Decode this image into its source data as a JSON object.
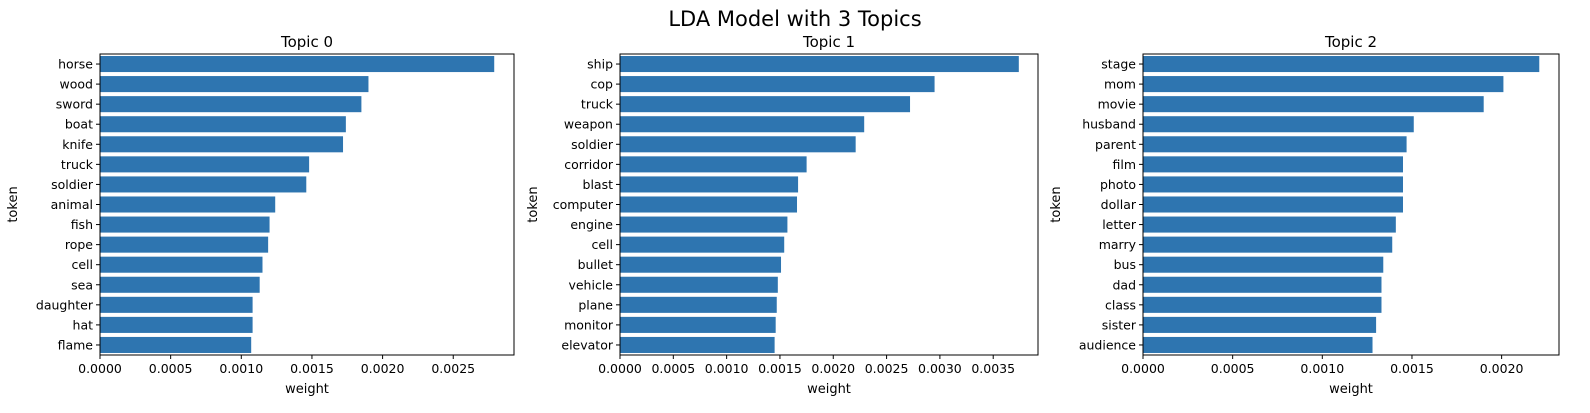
{
  "figure": {
    "suptitle": "LDA Model with 3 Topics"
  },
  "colors": {
    "bar": "#2e75b0",
    "axis": "#000000",
    "background": "#ffffff"
  },
  "chart_data": [
    {
      "type": "bar",
      "orientation": "horizontal",
      "title": "Topic 0",
      "xlabel": "weight",
      "ylabel": "token",
      "xlim": [
        0,
        0.00293
      ],
      "xticks": [
        0,
        0.0005,
        0.001,
        0.0015,
        0.002,
        0.0025
      ],
      "xtick_labels": [
        "0.0000",
        "0.0005",
        "0.0010",
        "0.0015",
        "0.0020",
        "0.0025"
      ],
      "grid": false,
      "categories": [
        "horse",
        "wood",
        "sword",
        "boat",
        "knife",
        "truck",
        "soldier",
        "animal",
        "fish",
        "rope",
        "cell",
        "sea",
        "daughter",
        "hat",
        "flame"
      ],
      "values": [
        0.00279,
        0.0019,
        0.00185,
        0.00174,
        0.00172,
        0.00148,
        0.00146,
        0.00124,
        0.0012,
        0.00119,
        0.00115,
        0.00113,
        0.00108,
        0.00108,
        0.00107
      ]
    },
    {
      "type": "bar",
      "orientation": "horizontal",
      "title": "Topic 1",
      "xlabel": "weight",
      "ylabel": "token",
      "xlim": [
        0,
        0.00392
      ],
      "xticks": [
        0,
        0.0005,
        0.001,
        0.0015,
        0.002,
        0.0025,
        0.003,
        0.0035
      ],
      "xtick_labels": [
        "0.0000",
        "0.0005",
        "0.0010",
        "0.0015",
        "0.0020",
        "0.0025",
        "0.0030",
        "0.0035"
      ],
      "grid": false,
      "categories": [
        "ship",
        "cop",
        "truck",
        "weapon",
        "soldier",
        "corridor",
        "blast",
        "computer",
        "engine",
        "cell",
        "bullet",
        "vehicle",
        "plane",
        "monitor",
        "elevator"
      ],
      "values": [
        0.00374,
        0.00295,
        0.00272,
        0.00229,
        0.00221,
        0.00175,
        0.00167,
        0.00166,
        0.00157,
        0.00154,
        0.00151,
        0.00148,
        0.00147,
        0.00146,
        0.00145
      ]
    },
    {
      "type": "bar",
      "orientation": "horizontal",
      "title": "Topic 2",
      "xlabel": "weight",
      "ylabel": "token",
      "xlim": [
        0,
        0.00232
      ],
      "xticks": [
        0,
        0.0005,
        0.001,
        0.0015,
        0.002
      ],
      "xtick_labels": [
        "0.0000",
        "0.0005",
        "0.0010",
        "0.0015",
        "0.0020"
      ],
      "grid": false,
      "categories": [
        "stage",
        "mom",
        "movie",
        "husband",
        "parent",
        "film",
        "photo",
        "dollar",
        "letter",
        "marry",
        "bus",
        "dad",
        "class",
        "sister",
        "audience"
      ],
      "values": [
        0.00221,
        0.00201,
        0.0019,
        0.00151,
        0.00147,
        0.00145,
        0.00145,
        0.00145,
        0.00141,
        0.00139,
        0.00134,
        0.00133,
        0.00133,
        0.0013,
        0.00128
      ]
    }
  ]
}
